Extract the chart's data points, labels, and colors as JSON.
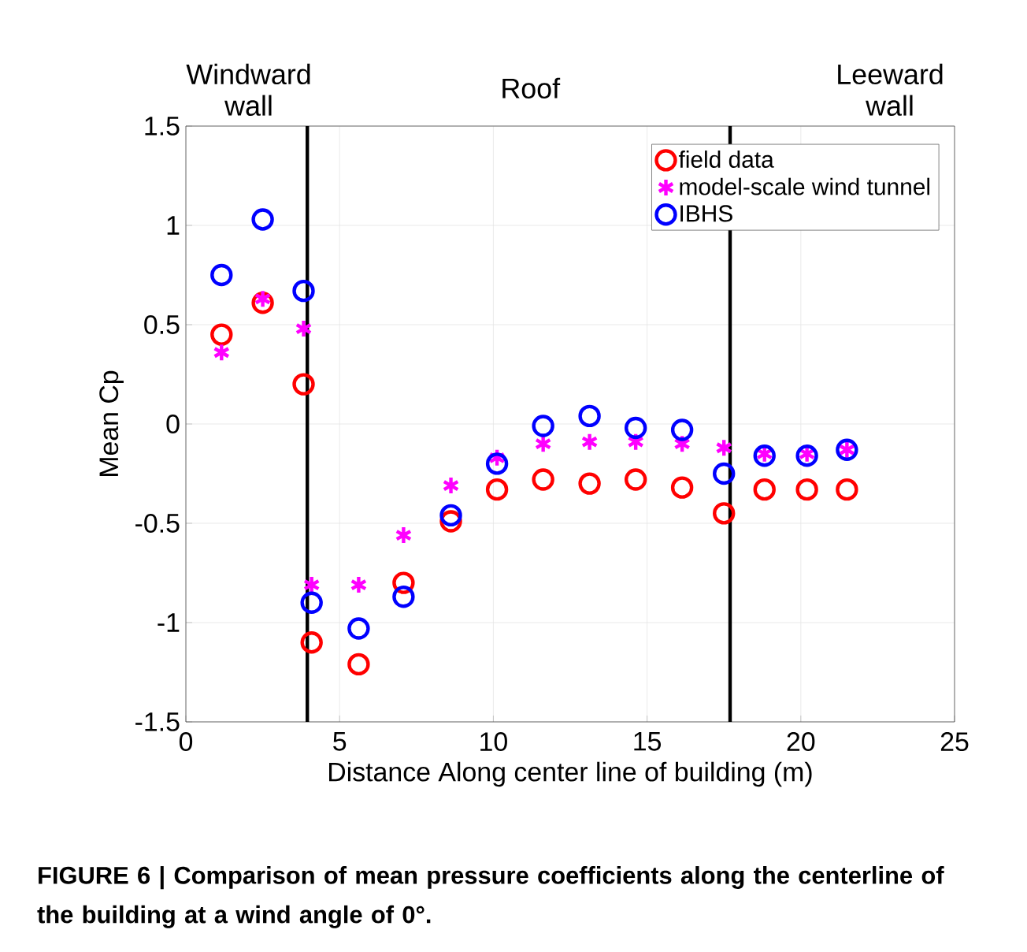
{
  "chart_data": {
    "type": "scatter",
    "xlabel": "Distance Along center line of building (m)",
    "ylabel": "Mean Cp",
    "xlim": [
      0,
      25
    ],
    "ylim": [
      -1.5,
      1.5
    ],
    "xticks": [
      0,
      5,
      10,
      15,
      20,
      25
    ],
    "yticks": [
      -1.5,
      -1,
      -0.5,
      0,
      0.5,
      1,
      1.5
    ],
    "grid": true,
    "legend": "top right",
    "x": [
      1.16,
      2.5,
      3.83,
      4.09,
      5.62,
      7.08,
      8.62,
      10.12,
      11.62,
      13.13,
      14.63,
      16.14,
      17.5,
      18.82,
      20.2,
      21.5
    ],
    "series": [
      {
        "name": "field data",
        "color": "#ff0000",
        "marker": "circle",
        "values": [
          0.45,
          0.61,
          0.2,
          -1.1,
          -1.21,
          -0.8,
          -0.49,
          -0.33,
          -0.28,
          -0.3,
          -0.28,
          -0.32,
          -0.45,
          -0.33,
          -0.33,
          -0.33
        ]
      },
      {
        "name": "model-scale wind tunnel",
        "color": "#ff00ff",
        "marker": "cross",
        "values": [
          0.36,
          0.63,
          0.48,
          -0.81,
          -0.81,
          -0.56,
          -0.31,
          -0.17,
          -0.1,
          -0.09,
          -0.09,
          -0.1,
          -0.12,
          -0.15,
          -0.15,
          -0.13
        ]
      },
      {
        "name": "IBHS",
        "color": "#0000ff",
        "marker": "circle",
        "values": [
          0.75,
          1.03,
          0.67,
          -0.9,
          -1.03,
          -0.87,
          -0.46,
          -0.2,
          -0.01,
          0.04,
          -0.02,
          -0.03,
          -0.25,
          -0.16,
          -0.16,
          -0.13
        ]
      }
    ],
    "ref_lines": [
      {
        "axis": "x",
        "value": 3.95,
        "color": "#000000"
      },
      {
        "axis": "x",
        "value": 17.7,
        "color": "#000000"
      }
    ],
    "annotations": [
      "Windward wall",
      "Roof",
      "Leeward wall",
      "FIGURE 6 | Comparison of mean pressure coefficients along the centerline of the building at a wind angle of 0°."
    ]
  }
}
